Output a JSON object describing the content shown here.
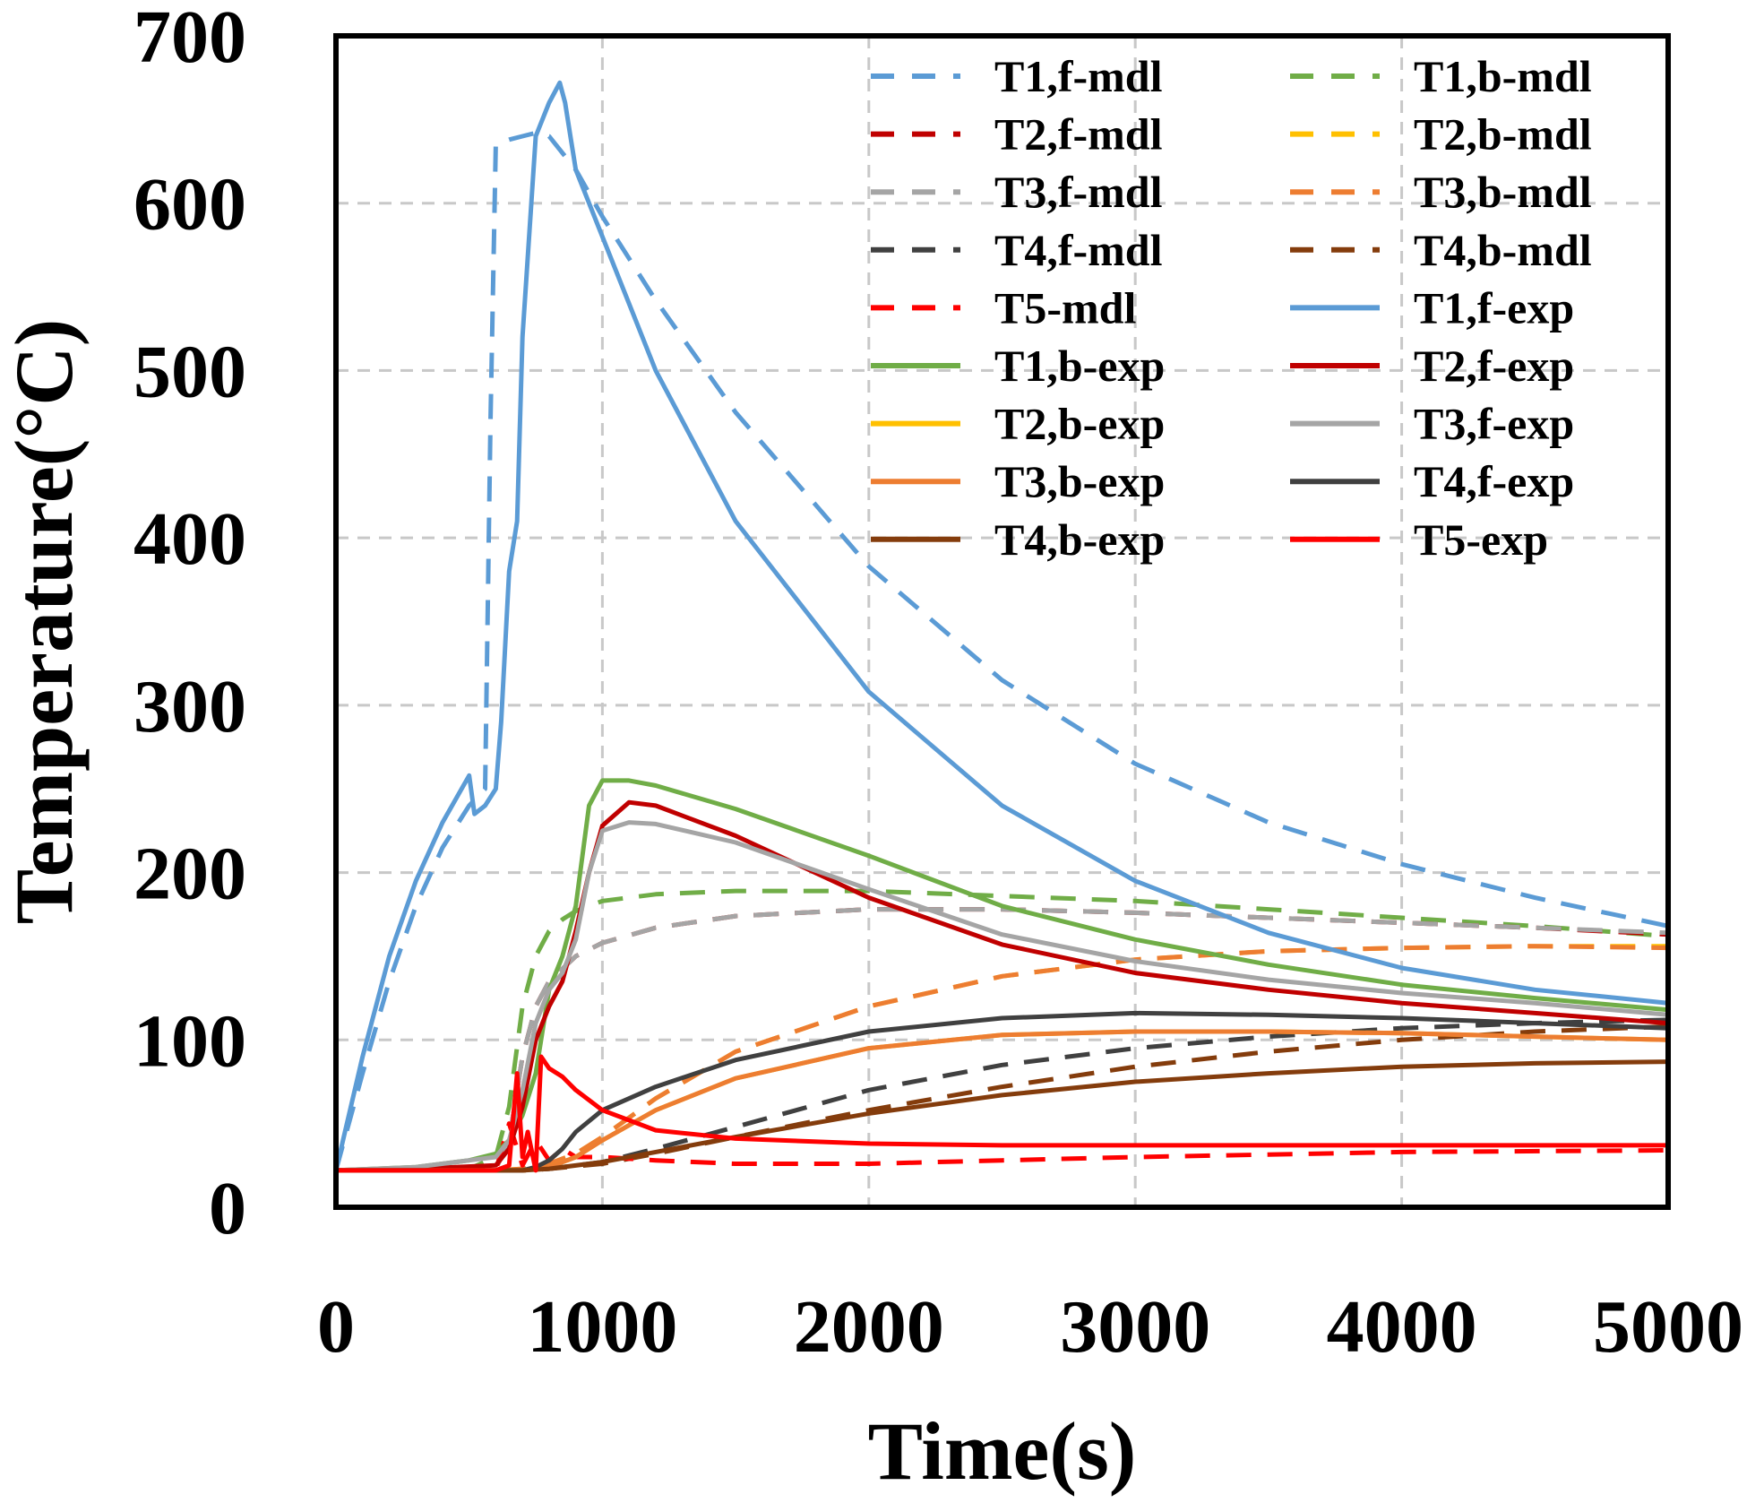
{
  "chart_data": {
    "type": "line",
    "title": "",
    "xlabel": "Time(s)",
    "ylabel": "Temperature(°C)",
    "xlim": [
      0,
      5000
    ],
    "ylim": [
      0,
      700
    ],
    "xticks": [
      0,
      1000,
      2000,
      3000,
      4000,
      5000
    ],
    "yticks": [
      0,
      100,
      200,
      300,
      400,
      500,
      600,
      700
    ],
    "xtick_labels": [
      "0",
      "1000",
      "2000",
      "3000",
      "4000",
      "5000"
    ],
    "ytick_labels": [
      "0",
      "100",
      "200",
      "300",
      "400",
      "500",
      "600",
      "700"
    ],
    "grid": true,
    "legend_position": "top-right",
    "series": [
      {
        "name": "T1,f-mdl",
        "color": "#5b9bd5",
        "style": "dashed",
        "x": [
          0,
          100,
          200,
          300,
          400,
          500,
          560,
          580,
          600,
          650,
          700,
          750,
          800,
          850,
          900,
          1000,
          1200,
          1500,
          2000,
          2500,
          3000,
          3500,
          4000,
          4500,
          5000
        ],
        "y": [
          22,
          80,
          135,
          180,
          215,
          240,
          250,
          470,
          635,
          638,
          640,
          642,
          640,
          630,
          620,
          592,
          542,
          475,
          383,
          315,
          265,
          230,
          205,
          185,
          168
        ]
      },
      {
        "name": "T1,b-mdl",
        "color": "#70ad47",
        "style": "dashed",
        "x": [
          0,
          500,
          600,
          650,
          700,
          750,
          800,
          850,
          900,
          1000,
          1200,
          1500,
          2000,
          2500,
          3000,
          3500,
          4000,
          4500,
          5000
        ],
        "y": [
          22,
          23,
          30,
          60,
          120,
          150,
          165,
          172,
          177,
          183,
          187,
          189,
          189,
          186,
          183,
          178,
          173,
          168,
          162
        ]
      },
      {
        "name": "T2,f-mdl",
        "color": "#c00000",
        "style": "dashed",
        "x": [
          0,
          600,
          650,
          700,
          750,
          800,
          900,
          1000,
          1200,
          1500,
          2000,
          2500,
          3000,
          3500,
          4000,
          4500,
          5000
        ],
        "y": [
          22,
          23,
          40,
          90,
          120,
          135,
          150,
          158,
          167,
          174,
          178,
          178,
          176,
          173,
          170,
          167,
          163
        ]
      },
      {
        "name": "T2,b-mdl",
        "color": "#ffc000",
        "style": "dashed",
        "x": [
          0,
          600,
          700,
          800,
          900,
          1000,
          1200,
          1500,
          2000,
          2500,
          3000,
          3500,
          4000,
          4500,
          5000
        ],
        "y": [
          22,
          22,
          23,
          26,
          32,
          42,
          65,
          93,
          120,
          138,
          148,
          153,
          155,
          156,
          156
        ]
      },
      {
        "name": "T3,f-mdl",
        "color": "#a5a5a5",
        "style": "dashed",
        "x": [
          0,
          600,
          650,
          700,
          750,
          800,
          900,
          1000,
          1200,
          1500,
          2000,
          2500,
          3000,
          3500,
          4000,
          4500,
          5000
        ],
        "y": [
          22,
          23,
          40,
          90,
          120,
          135,
          150,
          158,
          167,
          174,
          178,
          178,
          176,
          173,
          170,
          167,
          164
        ]
      },
      {
        "name": "T3,b-mdl",
        "color": "#ed7d31",
        "style": "dashed",
        "x": [
          0,
          600,
          700,
          800,
          900,
          1000,
          1200,
          1500,
          2000,
          2500,
          3000,
          3500,
          4000,
          4500,
          5000
        ],
        "y": [
          22,
          22,
          23,
          26,
          32,
          42,
          65,
          93,
          120,
          138,
          148,
          153,
          155,
          156,
          155
        ]
      },
      {
        "name": "T4,f-mdl",
        "color": "#404040",
        "style": "dashed",
        "x": [
          0,
          700,
          800,
          1000,
          1200,
          1500,
          2000,
          2500,
          3000,
          3500,
          4000,
          4500,
          5000
        ],
        "y": [
          22,
          22,
          23,
          27,
          35,
          48,
          70,
          85,
          95,
          102,
          107,
          110,
          112
        ]
      },
      {
        "name": "T4,b-mdl",
        "color": "#843c0c",
        "style": "dashed",
        "x": [
          0,
          700,
          800,
          1000,
          1200,
          1500,
          2000,
          2500,
          3000,
          3500,
          4000,
          4500,
          5000
        ],
        "y": [
          22,
          22,
          23,
          26,
          32,
          42,
          58,
          72,
          84,
          93,
          100,
          105,
          108
        ]
      },
      {
        "name": "T5-mdl",
        "color": "#ff0000",
        "style": "dashed",
        "x": [
          0,
          600,
          650,
          700,
          750,
          800,
          850,
          900,
          1000,
          1200,
          1500,
          2000,
          2500,
          3000,
          4000,
          5000
        ],
        "y": [
          22,
          22,
          50,
          25,
          40,
          28,
          35,
          30,
          30,
          28,
          26,
          26,
          28,
          30,
          33,
          34
        ]
      },
      {
        "name": "T1,f-exp",
        "color": "#5b9bd5",
        "style": "solid",
        "x": [
          0,
          100,
          200,
          300,
          400,
          500,
          520,
          560,
          600,
          620,
          650,
          680,
          700,
          750,
          800,
          840,
          860,
          880,
          900,
          1000,
          1200,
          1500,
          2000,
          2500,
          3000,
          3500,
          4000,
          4500,
          5000
        ],
        "y": [
          22,
          90,
          150,
          195,
          230,
          258,
          235,
          240,
          250,
          290,
          380,
          410,
          520,
          640,
          660,
          672,
          660,
          640,
          620,
          580,
          500,
          410,
          308,
          240,
          195,
          164,
          143,
          130,
          122
        ]
      },
      {
        "name": "T1,b-exp",
        "color": "#70ad47",
        "style": "solid",
        "x": [
          0,
          300,
          500,
          600,
          650,
          700,
          750,
          800,
          850,
          900,
          950,
          1000,
          1100,
          1200,
          1500,
          2000,
          2500,
          3000,
          3500,
          4000,
          4500,
          5000
        ],
        "y": [
          22,
          24,
          28,
          32,
          40,
          55,
          80,
          130,
          150,
          180,
          240,
          255,
          255,
          252,
          238,
          210,
          180,
          160,
          145,
          133,
          125,
          118
        ]
      },
      {
        "name": "T2,f-exp",
        "color": "#c00000",
        "style": "solid",
        "x": [
          0,
          300,
          600,
          650,
          700,
          750,
          800,
          850,
          900,
          950,
          1000,
          1100,
          1200,
          1500,
          2000,
          2500,
          3000,
          3500,
          4000,
          4500,
          5000
        ],
        "y": [
          22,
          23,
          25,
          35,
          60,
          100,
          120,
          135,
          165,
          200,
          228,
          242,
          240,
          222,
          185,
          157,
          140,
          130,
          122,
          116,
          110
        ]
      },
      {
        "name": "T2,b-exp",
        "color": "#ffc000",
        "style": "solid",
        "x": [
          0,
          700,
          800,
          900,
          1000,
          1200,
          1500,
          2000,
          2500,
          3000,
          3500,
          4000,
          4500,
          5000
        ],
        "y": [
          22,
          22,
          24,
          30,
          40,
          58,
          77,
          95,
          103,
          105,
          105,
          104,
          102,
          100
        ]
      },
      {
        "name": "T3,f-exp",
        "color": "#a5a5a5",
        "style": "solid",
        "x": [
          0,
          300,
          500,
          600,
          650,
          700,
          750,
          800,
          850,
          900,
          950,
          1000,
          1100,
          1200,
          1500,
          2000,
          2500,
          3000,
          3500,
          4000,
          4500,
          5000
        ],
        "y": [
          22,
          24,
          28,
          30,
          40,
          70,
          110,
          130,
          140,
          160,
          200,
          225,
          230,
          229,
          218,
          190,
          163,
          147,
          136,
          128,
          122,
          115
        ]
      },
      {
        "name": "T3,b-exp",
        "color": "#ed7d31",
        "style": "solid",
        "x": [
          0,
          700,
          800,
          900,
          1000,
          1200,
          1500,
          2000,
          2500,
          3000,
          3500,
          4000,
          4500,
          5000
        ],
        "y": [
          22,
          22,
          24,
          30,
          40,
          58,
          77,
          95,
          103,
          105,
          105,
          104,
          102,
          100
        ]
      },
      {
        "name": "T4,f-exp",
        "color": "#404040",
        "style": "solid",
        "x": [
          0,
          700,
          750,
          800,
          850,
          900,
          1000,
          1200,
          1500,
          2000,
          2500,
          3000,
          3500,
          4000,
          4500,
          5000
        ],
        "y": [
          22,
          22,
          24,
          28,
          35,
          45,
          58,
          72,
          88,
          105,
          113,
          116,
          115,
          113,
          110,
          107
        ]
      },
      {
        "name": "T4,b-exp",
        "color": "#843c0c",
        "style": "solid",
        "x": [
          0,
          700,
          800,
          1000,
          1200,
          1500,
          2000,
          2500,
          3000,
          3500,
          4000,
          4500,
          5000
        ],
        "y": [
          22,
          22,
          23,
          27,
          33,
          42,
          56,
          67,
          75,
          80,
          84,
          86,
          87
        ]
      },
      {
        "name": "T5-exp",
        "color": "#ff0000",
        "style": "solid",
        "x": [
          0,
          600,
          650,
          680,
          700,
          720,
          750,
          770,
          800,
          850,
          900,
          1000,
          1200,
          1500,
          2000,
          2500,
          3000,
          4000,
          5000
        ],
        "y": [
          22,
          22,
          25,
          80,
          30,
          45,
          22,
          90,
          83,
          78,
          70,
          58,
          46,
          41,
          38,
          37,
          37,
          37,
          37
        ]
      }
    ]
  }
}
